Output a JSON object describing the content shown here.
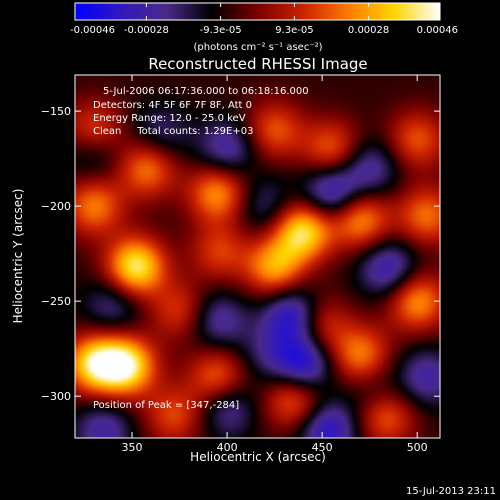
{
  "colorbar": {
    "tick_labels": [
      "-0.00046",
      "-0.00028",
      "-9.3e-05",
      "9.3e-05",
      "0.00028",
      "0.00046"
    ],
    "tick_values": [
      -0.00046,
      -0.00028,
      -9.3e-05,
      9.3e-05,
      0.00028,
      0.00046
    ],
    "range": [
      -0.00046,
      0.00046
    ],
    "unit_label": "(photons cm⁻² s⁻¹ asec⁻²)",
    "colors": [
      "#0000ff",
      "#3018c0",
      "#4a2a8a",
      "#000000",
      "#7a0000",
      "#cc2200",
      "#ff7a00",
      "#ffd400",
      "#ffffff"
    ]
  },
  "chart_data": {
    "type": "heatmap",
    "title": "Reconstructed RHESSI Image",
    "xlabel": "Heliocentric X (arcsec)",
    "ylabel": "Heliocentric Y (arcsec)",
    "xlim": [
      320,
      512
    ],
    "ylim": [
      -322,
      -131
    ],
    "x_ticks": [
      350,
      400,
      450,
      500
    ],
    "y_ticks": [
      -150,
      -200,
      -250,
      -300
    ],
    "x_tick_labels": [
      "350",
      "400",
      "450",
      "500"
    ],
    "y_tick_labels": [
      "−150",
      "−200",
      "−250",
      "−300"
    ],
    "annotations": [
      "5-Jul-2006 06:17:36.000 to 06:18:16.000",
      "Detectors: 4F 5F 6F 7F 8F, Att 0",
      "Energy Range: 12.0 - 25.0 keV",
      "Clean     Total counts: 1.29E+03"
    ],
    "peak_label": "Position of Peak = [347,-284]",
    "peak": [
      347,
      -284
    ],
    "blobs": [
      {
        "x": 352,
        "y": -232,
        "v": 0.00046
      },
      {
        "x": 347,
        "y": -284,
        "v": 0.00046
      },
      {
        "x": 440,
        "y": -213,
        "v": 0.00043
      },
      {
        "x": 330,
        "y": -283,
        "v": 0.0004
      },
      {
        "x": 425,
        "y": -232,
        "v": 0.00032
      },
      {
        "x": 395,
        "y": -193,
        "v": 0.0003
      },
      {
        "x": 470,
        "y": -207,
        "v": 0.0003
      },
      {
        "x": 500,
        "y": -250,
        "v": 0.0003
      },
      {
        "x": 470,
        "y": -278,
        "v": 0.00026
      },
      {
        "x": 483,
        "y": -310,
        "v": 0.00026
      },
      {
        "x": 358,
        "y": -180,
        "v": 0.00026
      },
      {
        "x": 330,
        "y": -200,
        "v": 0.00026
      },
      {
        "x": 395,
        "y": -290,
        "v": 0.00024
      },
      {
        "x": 435,
        "y": -302,
        "v": 0.00024
      },
      {
        "x": 505,
        "y": -205,
        "v": 0.00024
      },
      {
        "x": 455,
        "y": -170,
        "v": 0.00022
      },
      {
        "x": 425,
        "y": -160,
        "v": 0.0002
      },
      {
        "x": 500,
        "y": -165,
        "v": 0.0002
      },
      {
        "x": 330,
        "y": -160,
        "v": 0.0002
      },
      {
        "x": 448,
        "y": -262,
        "v": 0.0002
      },
      {
        "x": 372,
        "y": -310,
        "v": 0.00018
      },
      {
        "x": 396,
        "y": -224,
        "v": 0.00016
      },
      {
        "x": 375,
        "y": -255,
        "v": 0.00016
      },
      {
        "x": 435,
        "y": -258,
        "v": -0.00046
      },
      {
        "x": 440,
        "y": -283,
        "v": -0.00044
      },
      {
        "x": 455,
        "y": -193,
        "v": -0.0004
      },
      {
        "x": 453,
        "y": -318,
        "v": -0.0004
      },
      {
        "x": 485,
        "y": -233,
        "v": -0.00036
      },
      {
        "x": 400,
        "y": -170,
        "v": -0.00032
      },
      {
        "x": 395,
        "y": -260,
        "v": -0.0003
      },
      {
        "x": 400,
        "y": -306,
        "v": -0.0003
      },
      {
        "x": 335,
        "y": -318,
        "v": -0.0003
      },
      {
        "x": 475,
        "y": -180,
        "v": -0.0003
      },
      {
        "x": 505,
        "y": -290,
        "v": -0.0003
      },
      {
        "x": 340,
        "y": -252,
        "v": -0.00026
      },
      {
        "x": 365,
        "y": -162,
        "v": -0.00024
      },
      {
        "x": 420,
        "y": -200,
        "v": -0.00024
      },
      {
        "x": 330,
        "y": -172,
        "v": -0.00024
      },
      {
        "x": 478,
        "y": -300,
        "v": -0.00022
      },
      {
        "x": 420,
        "y": -278,
        "v": -0.0002
      }
    ]
  },
  "timestamp": "15-Jul-2013 23:11"
}
